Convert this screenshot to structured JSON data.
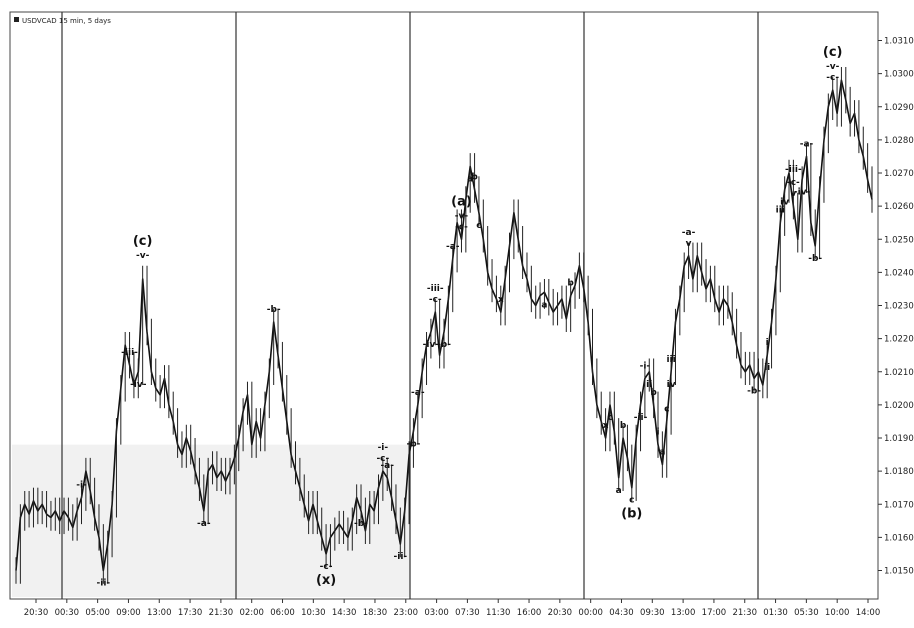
{
  "chart_data": {
    "type": "line",
    "title": "USDVCAD 15 min, 5 days",
    "y_tick_labels": [
      "1.0310",
      "1.0300",
      "1.0290",
      "1.0280",
      "1.0270",
      "1.0260",
      "1.0250",
      "1.0240",
      "1.0230",
      "1.0220",
      "1.0210",
      "1.0200",
      "1.0190",
      "1.0180",
      "1.0170",
      "1.0160",
      "1.0150"
    ],
    "ylim": [
      1.0142,
      1.0318
    ],
    "x_tick_labels": [
      "20:30",
      "00:30",
      "05:00",
      "09:00",
      "13:00",
      "17:30",
      "21:30",
      "02:00",
      "06:00",
      "10:30",
      "14:30",
      "18:30",
      "23:00",
      "03:00",
      "07:30",
      "11:30",
      "16:00",
      "20:30",
      "00:00",
      "04:30",
      "09:30",
      "13:00",
      "17:00",
      "21:30",
      "01:30",
      "05:30",
      "10:00",
      "14:00"
    ],
    "grid": false,
    "session_divider_count": 5,
    "series": [
      {
        "values": [
          1.015,
          1.0166,
          1.017,
          1.0167,
          1.0171,
          1.0168,
          1.017,
          1.0167,
          1.0166,
          1.0168,
          1.0165,
          1.0168,
          1.0166,
          1.0163,
          1.0168,
          1.0172,
          1.018,
          1.0174,
          1.0166,
          1.016,
          1.015,
          1.0158,
          1.017,
          1.0192,
          1.0205,
          1.0218,
          1.0212,
          1.0206,
          1.021,
          1.0238,
          1.0222,
          1.021,
          1.0205,
          1.0203,
          1.0208,
          1.02,
          1.0195,
          1.0188,
          1.0185,
          1.019,
          1.0186,
          1.018,
          1.0175,
          1.0168,
          1.018,
          1.0182,
          1.0178,
          1.018,
          1.0177,
          1.018,
          1.0184,
          1.019,
          1.0198,
          1.0203,
          1.0188,
          1.0195,
          1.019,
          1.02,
          1.021,
          1.0225,
          1.0215,
          1.0205,
          1.0195,
          1.0185,
          1.018,
          1.0175,
          1.017,
          1.0165,
          1.017,
          1.0165,
          1.016,
          1.0155,
          1.016,
          1.0162,
          1.0164,
          1.0162,
          1.016,
          1.0165,
          1.0172,
          1.0168,
          1.0162,
          1.017,
          1.0168,
          1.0175,
          1.018,
          1.0178,
          1.0172,
          1.0165,
          1.0158,
          1.0168,
          1.0185,
          1.0192,
          1.02,
          1.021,
          1.0218,
          1.0222,
          1.0228,
          1.0215,
          1.0222,
          1.0232,
          1.0244,
          1.0255,
          1.025,
          1.0262,
          1.0272,
          1.0265,
          1.0258,
          1.025,
          1.024,
          1.0235,
          1.0232,
          1.0228,
          1.0238,
          1.0248,
          1.0258,
          1.025,
          1.0242,
          1.0238,
          1.0232,
          1.023,
          1.0233,
          1.0234,
          1.0231,
          1.0228,
          1.023,
          1.0232,
          1.0226,
          1.0233,
          1.0236,
          1.0242,
          1.0235,
          1.0225,
          1.021,
          1.02,
          1.0195,
          1.019,
          1.02,
          1.0192,
          1.0178,
          1.019,
          1.0184,
          1.0175,
          1.019,
          1.02,
          1.0208,
          1.021,
          1.02,
          1.0188,
          1.0182,
          1.0195,
          1.021,
          1.0225,
          1.0232,
          1.0242,
          1.0245,
          1.0238,
          1.0245,
          1.024,
          1.0235,
          1.0238,
          1.0232,
          1.0228,
          1.0232,
          1.023,
          1.0225,
          1.0218,
          1.0212,
          1.021,
          1.0212,
          1.0208,
          1.021,
          1.0206,
          1.0215,
          1.0225,
          1.0238,
          1.0255,
          1.0265,
          1.027,
          1.026,
          1.025,
          1.0268,
          1.0275,
          1.0255,
          1.0248,
          1.0265,
          1.028,
          1.029,
          1.0295,
          1.0288,
          1.0298,
          1.0292,
          1.0285,
          1.0288,
          1.028,
          1.0275,
          1.0268,
          1.0262
        ]
      }
    ],
    "wave_labels": [
      {
        "text": "-i-",
        "i": 15,
        "pos": "above"
      },
      {
        "text": "-ii-",
        "i": 20,
        "pos": "below"
      },
      {
        "text": "-iii-",
        "i": 26,
        "pos": "above"
      },
      {
        "text": "-iv-",
        "i": 28,
        "pos": "below"
      },
      {
        "text": "-v-",
        "i": 29,
        "pos": "above1"
      },
      {
        "text": "(c)",
        "i": 29,
        "pos": "above2"
      },
      {
        "text": "-a-",
        "i": 43,
        "pos": "below"
      },
      {
        "text": "-b-",
        "i": 59,
        "pos": "above"
      },
      {
        "text": "-c-",
        "i": 71,
        "pos": "below1"
      },
      {
        "text": "(x)",
        "i": 71,
        "pos": "below2"
      },
      {
        "text": "-a-",
        "i": 85,
        "pos": "above"
      },
      {
        "text": "-b-",
        "i": 79,
        "pos": "below"
      },
      {
        "text": "-c-",
        "i": 84,
        "pos": "above"
      },
      {
        "text": "-i-",
        "i": 84,
        "pos": "above1"
      },
      {
        "text": "-ii-",
        "i": 88,
        "pos": "below"
      },
      {
        "text": "-a-",
        "i": 92,
        "pos": "above"
      },
      {
        "text": "-b-",
        "i": 91,
        "pos": "below"
      },
      {
        "text": "-iii-",
        "i": 96,
        "pos": "above1"
      },
      {
        "text": "-c-",
        "i": 96,
        "pos": "above"
      },
      {
        "text": "-iv-",
        "i": 95,
        "pos": "below"
      },
      {
        "text": "-b-",
        "i": 98,
        "pos": "below"
      },
      {
        "text": "-a-",
        "i": 100,
        "pos": "above"
      },
      {
        "text": "-c-",
        "i": 102,
        "pos": "above"
      },
      {
        "text": "-v-",
        "i": 102,
        "pos": "above1"
      },
      {
        "text": "(a)",
        "i": 102,
        "pos": "above2"
      },
      {
        "text": "a",
        "i": 104,
        "pos": "below"
      },
      {
        "text": "b",
        "i": 105,
        "pos": "above"
      },
      {
        "text": "c",
        "i": 106,
        "pos": "below"
      },
      {
        "text": "x",
        "i": 111,
        "pos": "above"
      },
      {
        "text": "a",
        "i": 121,
        "pos": "below"
      },
      {
        "text": "b",
        "i": 127,
        "pos": "above"
      },
      {
        "text": "c",
        "i": 136,
        "pos": "below"
      },
      {
        "text": "x",
        "i": 135,
        "pos": "above"
      },
      {
        "text": "a",
        "i": 138,
        "pos": "below"
      },
      {
        "text": "b",
        "i": 139,
        "pos": "above"
      },
      {
        "text": "c",
        "i": 141,
        "pos": "below1"
      },
      {
        "text": "(b)",
        "i": 141,
        "pos": "below2"
      },
      {
        "text": "i",
        "i": 147,
        "pos": "above"
      },
      {
        "text": "-i-",
        "i": 144,
        "pos": "above"
      },
      {
        "text": "ii",
        "i": 145,
        "pos": "below"
      },
      {
        "text": "-ii-",
        "i": 143,
        "pos": "below"
      },
      {
        "text": "a",
        "i": 148,
        "pos": "above"
      },
      {
        "text": "b",
        "i": 146,
        "pos": "above"
      },
      {
        "text": "c",
        "i": 149,
        "pos": "above"
      },
      {
        "text": "iii",
        "i": 150,
        "pos": "above"
      },
      {
        "text": "iv",
        "i": 150,
        "pos": "below"
      },
      {
        "text": "-a-",
        "i": 154,
        "pos": "above1"
      },
      {
        "text": "v",
        "i": 154,
        "pos": "above"
      },
      {
        "text": "-b-",
        "i": 169,
        "pos": "below"
      },
      {
        "text": "i",
        "i": 172,
        "pos": "above"
      },
      {
        "text": "ii",
        "i": 172,
        "pos": "below"
      },
      {
        "text": "iii",
        "i": 175,
        "pos": "above"
      },
      {
        "text": "iv",
        "i": 176,
        "pos": "below"
      },
      {
        "text": "v",
        "i": 178,
        "pos": "above"
      },
      {
        "text": "-c-",
        "i": 178,
        "pos": "above1"
      },
      {
        "text": "-iii-",
        "i": 178,
        "pos": "above2"
      },
      {
        "text": "-iv-",
        "i": 180,
        "pos": "below"
      },
      {
        "text": "-a-",
        "i": 181,
        "pos": "above"
      },
      {
        "text": "-b-",
        "i": 183,
        "pos": "below"
      },
      {
        "text": "-c-",
        "i": 187,
        "pos": "above"
      },
      {
        "text": "-v-",
        "i": 187,
        "pos": "above1"
      },
      {
        "text": "(c)",
        "i": 187,
        "pos": "above2"
      }
    ]
  }
}
